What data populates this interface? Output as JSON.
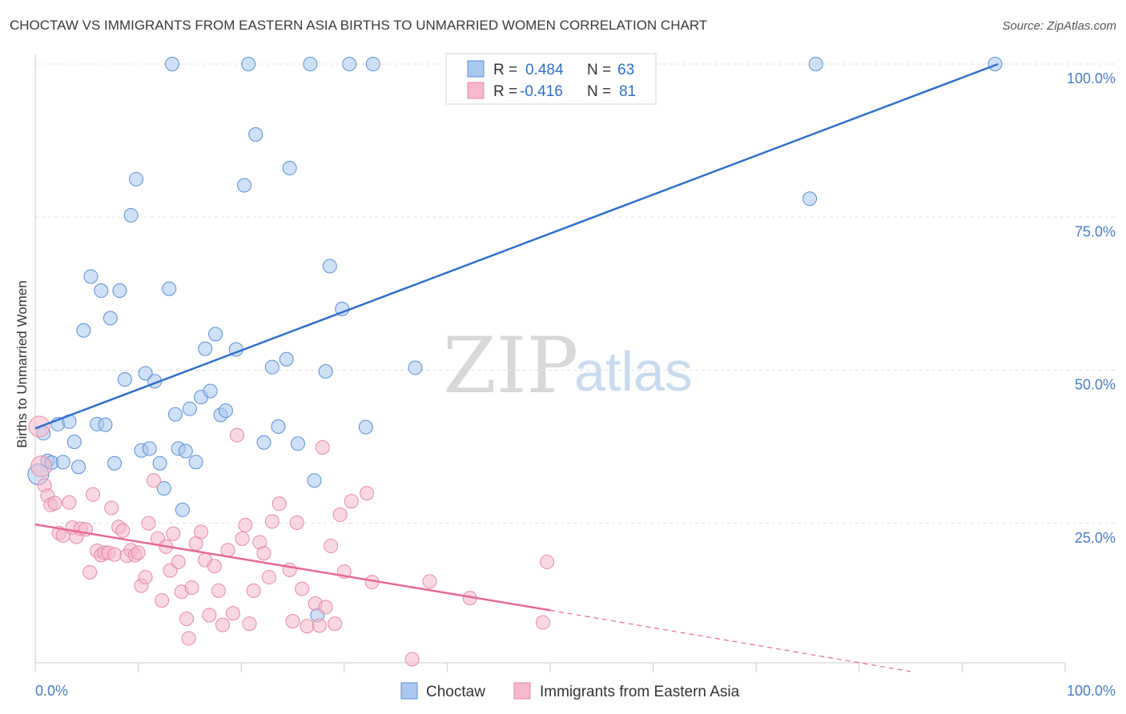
{
  "title": "CHOCTAW VS IMMIGRANTS FROM EASTERN ASIA BIRTHS TO UNMARRIED WOMEN CORRELATION CHART",
  "source": "Source: ZipAtlas.com",
  "watermark": {
    "zip": "ZIP",
    "atlas": "atlas"
  },
  "legend": {
    "r_label": "R =",
    "n_label": "N =",
    "rows": [
      {
        "r": "0.484",
        "n": "63",
        "color": "#a8c8f0",
        "stroke": "#5b8fd6"
      },
      {
        "r": "-0.416",
        "n": "81",
        "color": "#f6b8cb",
        "stroke": "#e889a8"
      }
    ]
  },
  "bottom_legend": {
    "choctaw": "Choctaw",
    "immigrants": "Immigrants from Eastern Asia"
  },
  "chart_data": {
    "type": "scatter",
    "title": "CHOCTAW VS IMMIGRANTS FROM EASTERN ASIA BIRTHS TO UNMARRIED WOMEN CORRELATION CHART",
    "xlabel": "",
    "ylabel": "Births to Unmarried Women",
    "xlim": [
      0,
      100
    ],
    "ylim": [
      0,
      100
    ],
    "x_tick_labels": [
      "0.0%",
      "100.0%"
    ],
    "y_tick_labels": [
      "25.0%",
      "50.0%",
      "75.0%",
      "100.0%"
    ],
    "y_ticks": [
      25,
      50,
      75,
      100
    ],
    "grid": true,
    "legend_position": "top-center",
    "series": [
      {
        "name": "Choctaw",
        "color": "#a8c8f0",
        "stroke": "#5b8fd6",
        "line_color": "#2f6fd0",
        "trend": {
          "x0": 0,
          "y0": 40.5,
          "x1": 93.5,
          "y1": 100
        },
        "points": [
          [
            0.3,
            33.0
          ],
          [
            0.8,
            39.7
          ],
          [
            1.2,
            35.2
          ],
          [
            1.6,
            34.9
          ],
          [
            2.2,
            41.2
          ],
          [
            2.7,
            35.0
          ],
          [
            3.3,
            41.6
          ],
          [
            3.8,
            38.3
          ],
          [
            4.2,
            34.2
          ],
          [
            4.7,
            56.5
          ],
          [
            5.4,
            65.3
          ],
          [
            6.0,
            41.2
          ],
          [
            6.4,
            63.0
          ],
          [
            6.8,
            41.1
          ],
          [
            7.3,
            58.5
          ],
          [
            7.7,
            34.8
          ],
          [
            8.2,
            63.0
          ],
          [
            8.7,
            48.5
          ],
          [
            9.3,
            75.3
          ],
          [
            9.8,
            81.2
          ],
          [
            10.3,
            36.9
          ],
          [
            10.7,
            49.5
          ],
          [
            11.1,
            37.2
          ],
          [
            11.6,
            48.2
          ],
          [
            12.1,
            34.8
          ],
          [
            12.5,
            30.7
          ],
          [
            13.0,
            63.3
          ],
          [
            13.3,
            100
          ],
          [
            13.6,
            42.8
          ],
          [
            13.9,
            37.2
          ],
          [
            14.3,
            27.2
          ],
          [
            14.6,
            36.8
          ],
          [
            15.0,
            43.7
          ],
          [
            15.6,
            35.0
          ],
          [
            16.1,
            45.6
          ],
          [
            16.5,
            53.5
          ],
          [
            17.0,
            46.6
          ],
          [
            17.5,
            55.9
          ],
          [
            18.0,
            42.7
          ],
          [
            18.5,
            43.4
          ],
          [
            19.5,
            53.4
          ],
          [
            20.3,
            80.2
          ],
          [
            20.7,
            100
          ],
          [
            21.4,
            88.5
          ],
          [
            22.2,
            38.2
          ],
          [
            23.0,
            50.5
          ],
          [
            23.6,
            40.8
          ],
          [
            24.4,
            51.8
          ],
          [
            24.7,
            83.0
          ],
          [
            25.5,
            38.0
          ],
          [
            26.7,
            100
          ],
          [
            27.1,
            32.0
          ],
          [
            27.4,
            10.0
          ],
          [
            28.2,
            49.8
          ],
          [
            28.6,
            67.0
          ],
          [
            29.8,
            60.0
          ],
          [
            30.5,
            100
          ],
          [
            32.1,
            40.7
          ],
          [
            32.8,
            100
          ],
          [
            36.9,
            50.4
          ],
          [
            75.8,
            100
          ],
          [
            75.2,
            78.0
          ],
          [
            93.2,
            100
          ]
        ]
      },
      {
        "name": "Immigrants from Eastern Asia",
        "color": "#f6b8cb",
        "stroke": "#e889a8",
        "line_color": "#e8689a",
        "trend": {
          "x0": 0,
          "y0": 24.8,
          "x1": 50,
          "y1": 10.8
        },
        "trend_dashed": {
          "x0": 50,
          "y0": 10.8,
          "x1": 85,
          "y1": 0.8
        },
        "points": [
          [
            0.4,
            40.8
          ],
          [
            0.6,
            34.3
          ],
          [
            0.9,
            31.2
          ],
          [
            1.2,
            29.5
          ],
          [
            1.5,
            28.0
          ],
          [
            1.9,
            28.3
          ],
          [
            2.3,
            23.4
          ],
          [
            2.7,
            23.0
          ],
          [
            3.3,
            28.4
          ],
          [
            3.6,
            24.3
          ],
          [
            4.0,
            22.8
          ],
          [
            4.4,
            24.1
          ],
          [
            4.9,
            24.0
          ],
          [
            5.3,
            17.0
          ],
          [
            5.6,
            29.7
          ],
          [
            6.0,
            20.5
          ],
          [
            6.4,
            19.8
          ],
          [
            6.7,
            20.2
          ],
          [
            7.1,
            20.2
          ],
          [
            7.4,
            27.5
          ],
          [
            7.7,
            19.9
          ],
          [
            8.1,
            24.4
          ],
          [
            8.5,
            23.8
          ],
          [
            8.9,
            19.7
          ],
          [
            9.3,
            20.6
          ],
          [
            9.7,
            19.8
          ],
          [
            10.0,
            20.2
          ],
          [
            10.3,
            14.8
          ],
          [
            10.7,
            16.2
          ],
          [
            11.0,
            25.0
          ],
          [
            11.5,
            32.0
          ],
          [
            11.9,
            22.5
          ],
          [
            12.3,
            12.4
          ],
          [
            12.7,
            21.2
          ],
          [
            13.1,
            17.3
          ],
          [
            13.4,
            23.3
          ],
          [
            13.9,
            18.7
          ],
          [
            14.2,
            13.8
          ],
          [
            14.7,
            9.4
          ],
          [
            14.9,
            6.2
          ],
          [
            15.2,
            14.5
          ],
          [
            15.6,
            21.7
          ],
          [
            16.1,
            23.6
          ],
          [
            16.5,
            19.0
          ],
          [
            16.9,
            10.0
          ],
          [
            17.4,
            18.0
          ],
          [
            17.8,
            14.0
          ],
          [
            18.2,
            8.4
          ],
          [
            18.7,
            20.6
          ],
          [
            19.2,
            10.3
          ],
          [
            19.6,
            39.4
          ],
          [
            20.1,
            22.5
          ],
          [
            20.4,
            24.7
          ],
          [
            20.8,
            8.6
          ],
          [
            21.2,
            14.0
          ],
          [
            21.8,
            21.9
          ],
          [
            22.2,
            20.1
          ],
          [
            22.7,
            16.2
          ],
          [
            23.0,
            25.3
          ],
          [
            23.7,
            28.2
          ],
          [
            24.7,
            17.4
          ],
          [
            25.0,
            9.0
          ],
          [
            25.4,
            25.1
          ],
          [
            25.9,
            14.3
          ],
          [
            26.4,
            8.2
          ],
          [
            27.2,
            11.9
          ],
          [
            27.6,
            8.3
          ],
          [
            27.9,
            37.4
          ],
          [
            28.2,
            11.3
          ],
          [
            28.7,
            21.3
          ],
          [
            29.1,
            8.6
          ],
          [
            29.6,
            26.4
          ],
          [
            30.0,
            17.1
          ],
          [
            30.7,
            28.6
          ],
          [
            32.2,
            29.9
          ],
          [
            32.7,
            15.4
          ],
          [
            36.6,
            2.8
          ],
          [
            38.3,
            15.5
          ],
          [
            42.2,
            12.8
          ],
          [
            49.3,
            8.8
          ],
          [
            49.7,
            18.7
          ]
        ]
      }
    ]
  }
}
